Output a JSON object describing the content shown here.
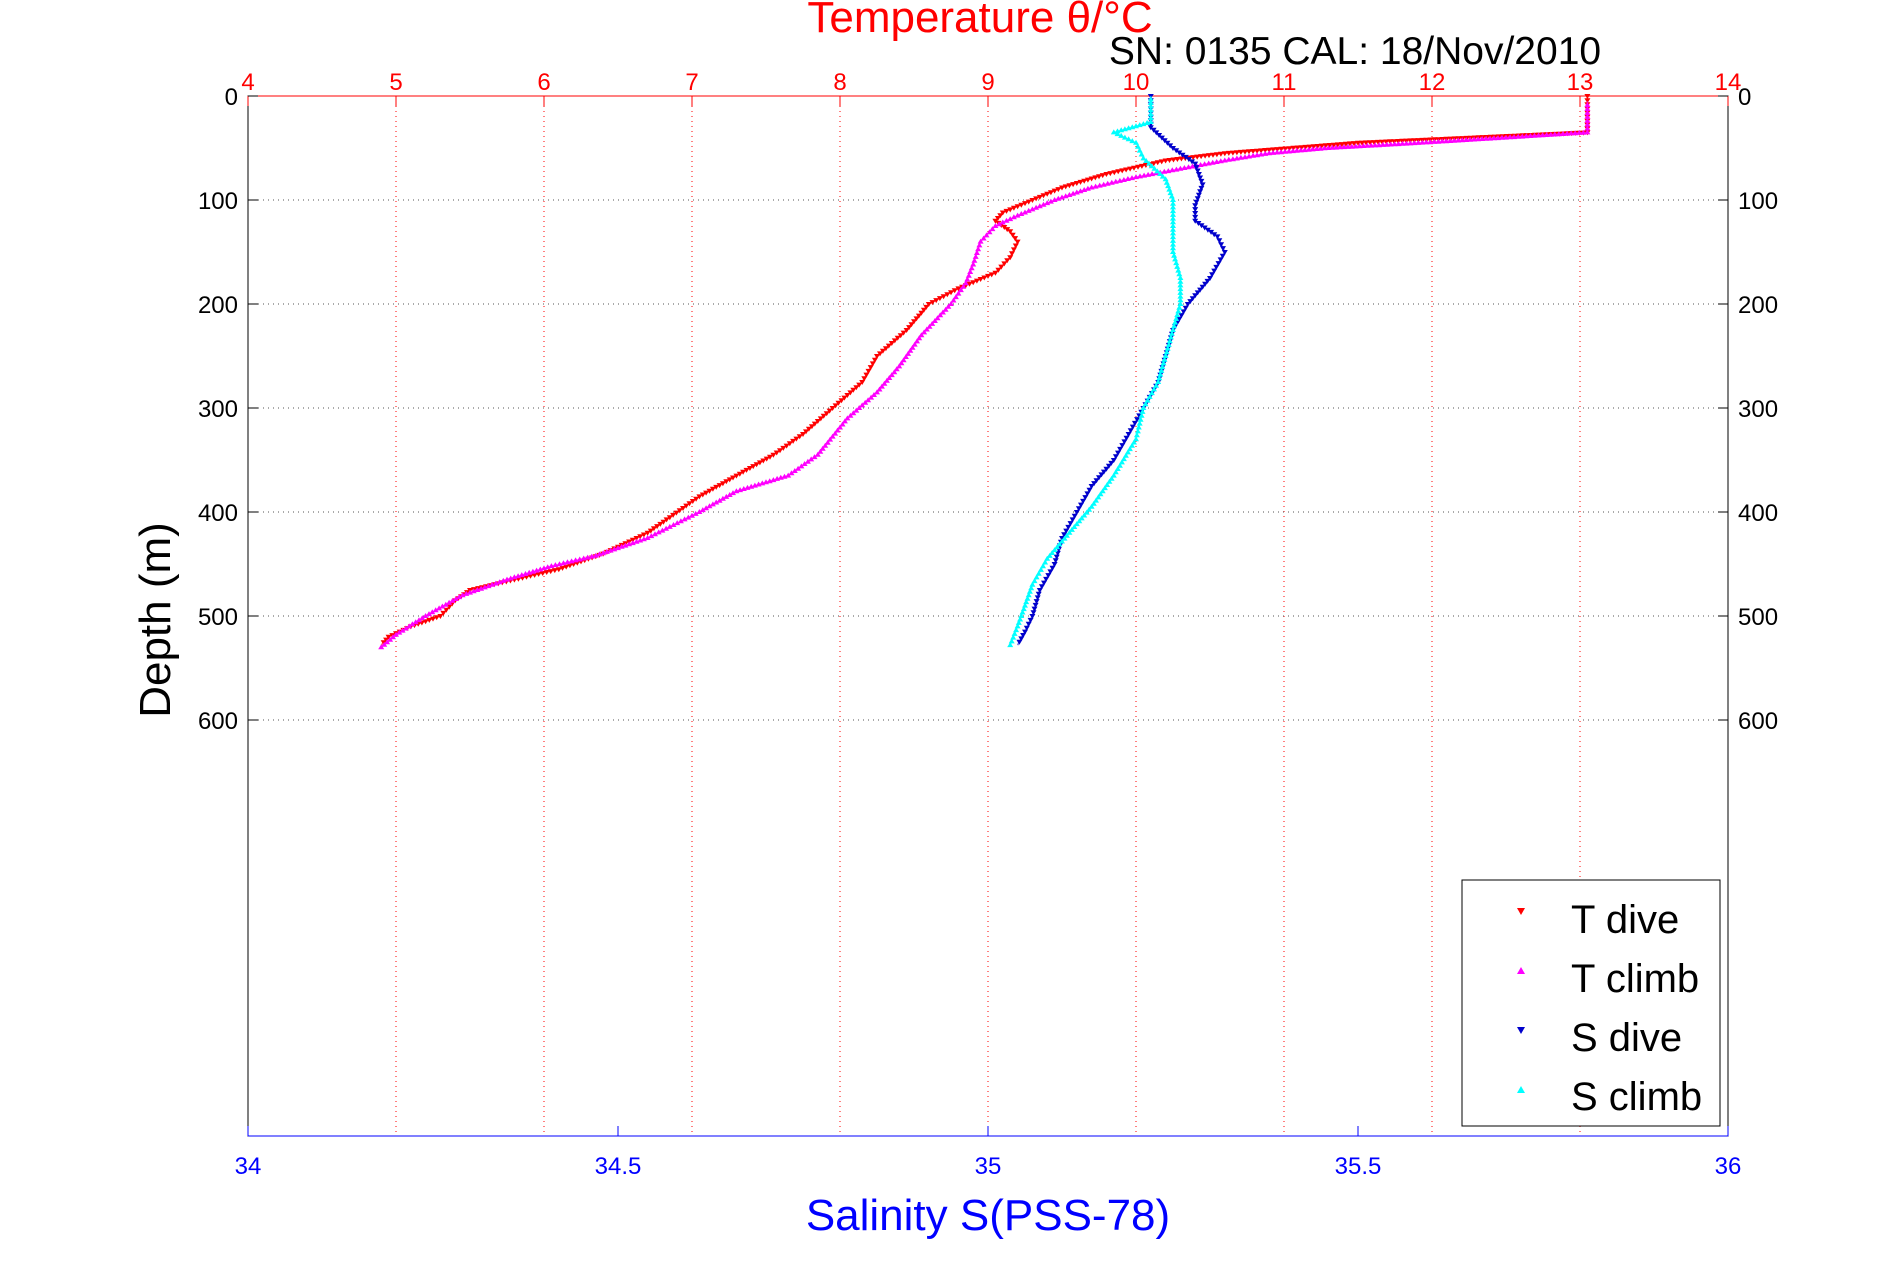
{
  "window": {
    "title": "SN: 0135  CAL: 18/Nov/2010"
  },
  "colors": {
    "temperature_axis": "#ff0000",
    "salinity_axis": "#0000ff",
    "t_dive": "#ff0000",
    "t_climb": "#ff00ff",
    "s_dive": "#0000cc",
    "s_climb": "#00ffff",
    "grid": "#555555"
  },
  "chart_data": {
    "type": "scatter",
    "title": "SN: 0135  CAL: 18/Nov/2010",
    "top_xlabel": "Temperature θ/°C",
    "bottom_xlabel": "Salinity S(PSS-78)",
    "ylabel": "Depth (m)",
    "temperature_lim": [
      4,
      14
    ],
    "salinity_lim": [
      34,
      36
    ],
    "depth_lim": [
      0,
      1000
    ],
    "y_reversed": true,
    "temperature_ticks": [
      "4",
      "5",
      "6",
      "7",
      "8",
      "9",
      "10",
      "11",
      "12",
      "13",
      "14"
    ],
    "salinity_ticks": [
      "34",
      "34.5",
      "35",
      "35.5",
      "36"
    ],
    "depth_ticks": [
      "0",
      "100",
      "200",
      "300",
      "400",
      "500",
      "600"
    ],
    "grid": true,
    "legend_position": "bottom-right",
    "series": [
      {
        "name": "T dive",
        "axis": "temperature",
        "points": [
          [
            13.05,
            0
          ],
          [
            13.05,
            20
          ],
          [
            13.05,
            35
          ],
          [
            11.5,
            45
          ],
          [
            10.6,
            55
          ],
          [
            10.2,
            62
          ],
          [
            9.8,
            75
          ],
          [
            9.5,
            88
          ],
          [
            9.3,
            100
          ],
          [
            9.1,
            112
          ],
          [
            9.05,
            120
          ],
          [
            9.15,
            130
          ],
          [
            9.2,
            140
          ],
          [
            9.15,
            155
          ],
          [
            9.05,
            170
          ],
          [
            8.8,
            185
          ],
          [
            8.6,
            200
          ],
          [
            8.45,
            225
          ],
          [
            8.25,
            250
          ],
          [
            8.15,
            275
          ],
          [
            7.95,
            300
          ],
          [
            7.75,
            325
          ],
          [
            7.55,
            345
          ],
          [
            7.3,
            365
          ],
          [
            7.05,
            385
          ],
          [
            6.85,
            405
          ],
          [
            6.7,
            420
          ],
          [
            6.4,
            440
          ],
          [
            6.1,
            455
          ],
          [
            5.8,
            465
          ],
          [
            5.5,
            475
          ],
          [
            5.4,
            485
          ],
          [
            5.3,
            500
          ],
          [
            5.1,
            510
          ],
          [
            4.95,
            520
          ],
          [
            4.9,
            528
          ]
        ]
      },
      {
        "name": "T climb",
        "axis": "temperature",
        "points": [
          [
            4.9,
            530
          ],
          [
            5.0,
            518
          ],
          [
            5.2,
            500
          ],
          [
            5.45,
            480
          ],
          [
            5.75,
            465
          ],
          [
            6.05,
            452
          ],
          [
            6.35,
            442
          ],
          [
            6.7,
            425
          ],
          [
            7.05,
            400
          ],
          [
            7.3,
            380
          ],
          [
            7.65,
            365
          ],
          [
            7.85,
            345
          ],
          [
            8.05,
            310
          ],
          [
            8.25,
            285
          ],
          [
            8.4,
            260
          ],
          [
            8.55,
            230
          ],
          [
            8.75,
            200
          ],
          [
            8.85,
            180
          ],
          [
            8.9,
            162
          ],
          [
            8.95,
            140
          ],
          [
            9.05,
            125
          ],
          [
            9.2,
            115
          ],
          [
            9.45,
            100
          ],
          [
            9.7,
            88
          ],
          [
            10.0,
            78
          ],
          [
            10.3,
            70
          ],
          [
            10.6,
            62
          ],
          [
            10.9,
            55
          ],
          [
            11.3,
            50
          ],
          [
            11.8,
            46
          ],
          [
            12.5,
            40
          ],
          [
            13.05,
            35
          ],
          [
            13.05,
            20
          ],
          [
            13.05,
            5
          ]
        ]
      },
      {
        "name": "S dive",
        "axis": "salinity",
        "points": [
          [
            35.22,
            0
          ],
          [
            35.22,
            20
          ],
          [
            35.22,
            30
          ],
          [
            35.25,
            50
          ],
          [
            35.28,
            65
          ],
          [
            35.29,
            85
          ],
          [
            35.28,
            105
          ],
          [
            35.28,
            120
          ],
          [
            35.31,
            135
          ],
          [
            35.32,
            150
          ],
          [
            35.3,
            175
          ],
          [
            35.27,
            200
          ],
          [
            35.25,
            225
          ],
          [
            35.24,
            250
          ],
          [
            35.23,
            275
          ],
          [
            35.21,
            300
          ],
          [
            35.19,
            325
          ],
          [
            35.17,
            350
          ],
          [
            35.14,
            375
          ],
          [
            35.12,
            400
          ],
          [
            35.1,
            425
          ],
          [
            35.09,
            450
          ],
          [
            35.07,
            475
          ],
          [
            35.06,
            500
          ],
          [
            35.05,
            515
          ],
          [
            35.04,
            528
          ]
        ]
      },
      {
        "name": "S climb",
        "axis": "salinity",
        "points": [
          [
            35.03,
            528
          ],
          [
            35.04,
            510
          ],
          [
            35.05,
            490
          ],
          [
            35.06,
            470
          ],
          [
            35.08,
            445
          ],
          [
            35.11,
            420
          ],
          [
            35.14,
            395
          ],
          [
            35.17,
            365
          ],
          [
            35.2,
            330
          ],
          [
            35.21,
            300
          ],
          [
            35.23,
            275
          ],
          [
            35.24,
            250
          ],
          [
            35.25,
            225
          ],
          [
            35.26,
            200
          ],
          [
            35.26,
            175
          ],
          [
            35.25,
            150
          ],
          [
            35.25,
            125
          ],
          [
            35.25,
            100
          ],
          [
            35.24,
            80
          ],
          [
            35.21,
            60
          ],
          [
            35.2,
            45
          ],
          [
            35.17,
            35
          ],
          [
            35.22,
            25
          ],
          [
            35.22,
            10
          ],
          [
            35.22,
            0
          ]
        ]
      }
    ]
  }
}
